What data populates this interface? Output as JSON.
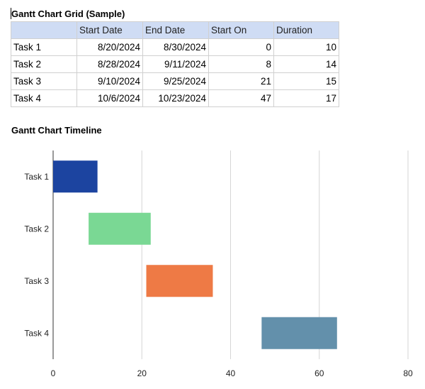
{
  "grid": {
    "title": "Gantt Chart Grid (Sample)",
    "headers": [
      "",
      "Start Date",
      "End Date",
      "Start On",
      "Duration"
    ],
    "rows": [
      {
        "task": "Task 1",
        "start_date": "8/20/2024",
        "end_date": "8/30/2024",
        "start_on": "0",
        "duration": "10"
      },
      {
        "task": "Task 2",
        "start_date": "8/28/2024",
        "end_date": "9/11/2024",
        "start_on": "8",
        "duration": "14"
      },
      {
        "task": "Task 3",
        "start_date": "9/10/2024",
        "end_date": "9/25/2024",
        "start_on": "21",
        "duration": "15"
      },
      {
        "task": "Task 4",
        "start_date": "10/6/2024",
        "end_date": "10/23/2024",
        "start_on": "47",
        "duration": "17"
      }
    ]
  },
  "timeline": {
    "title": "Gantt Chart Timeline"
  },
  "chart_data": {
    "type": "bar",
    "orientation": "horizontal",
    "stacked": true,
    "categories": [
      "Task 1",
      "Task 2",
      "Task 3",
      "Task 4"
    ],
    "start": [
      0,
      8,
      21,
      47
    ],
    "duration": [
      10,
      14,
      15,
      17
    ],
    "colors": [
      "#1c44a0",
      "#7ad894",
      "#ee7a45",
      "#6390ab"
    ],
    "xlim": [
      0,
      80
    ],
    "xticks": [
      "0",
      "20",
      "40",
      "60",
      "80"
    ],
    "grid": "vertical",
    "legend": "none"
  }
}
